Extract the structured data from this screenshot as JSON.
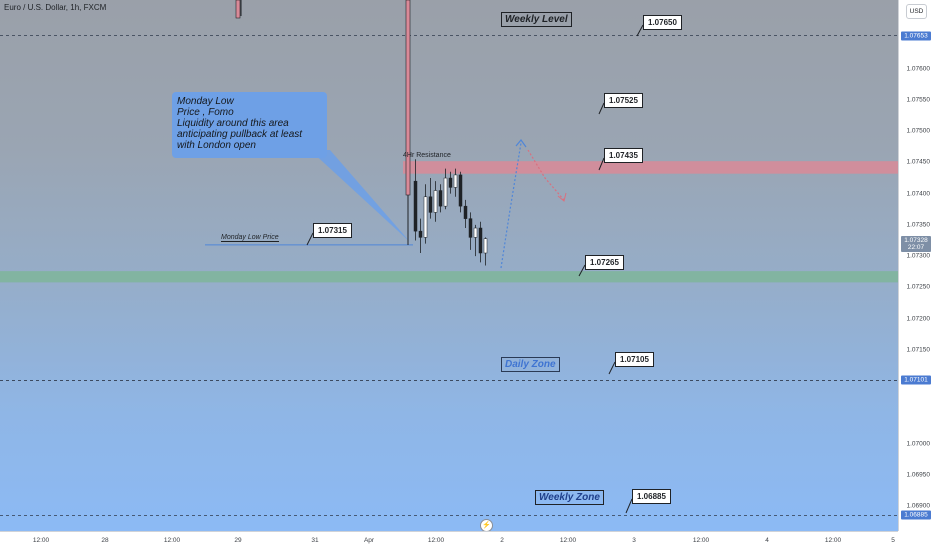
{
  "title": "Euro / U.S. Dollar, 1h, FXCM",
  "currency_button": "USD",
  "chart_data": {
    "type": "candlestick",
    "ylim": [
      1.0686,
      1.0771
    ],
    "price_ticks": [
      "1.07600",
      "1.07550",
      "1.07500",
      "1.07450",
      "1.07400",
      "1.07350",
      "1.07300",
      "1.07250",
      "1.07200",
      "1.07150",
      "1.07000",
      "1.06950",
      "1.06900"
    ],
    "price_tags": [
      {
        "value": "1.07653",
        "color": "#4b7bd1"
      },
      {
        "value": "1.07101",
        "color": "#4b7bd1"
      },
      {
        "value": "1.06885",
        "color": "#4b7bd1"
      },
      {
        "value": "1.07328",
        "sub": "22:07",
        "color": "#7e8fa6"
      }
    ],
    "time_ticks": [
      "12:00",
      "28",
      "12:00",
      "29",
      "31",
      "Apr",
      "12:00",
      "2",
      "12:00",
      "3",
      "12:00",
      "4",
      "12:00",
      "5"
    ],
    "horizontal_lines": [
      {
        "price": 1.07653,
        "style": "dashed"
      },
      {
        "price": 1.07101,
        "style": "dashed"
      },
      {
        "price": 1.06885,
        "style": "dashed"
      }
    ],
    "zones": [
      {
        "name": "4Hr Resistance",
        "from": 1.07432,
        "to": 1.07452,
        "color": "#d98a98"
      },
      {
        "name": "Daily Zone",
        "from": 1.07258,
        "to": 1.07276,
        "color": "#7fb59a"
      }
    ],
    "candles": [
      {
        "o": 1.0742,
        "h": 1.07455,
        "l": 1.07325,
        "c": 1.0734
      },
      {
        "o": 1.0734,
        "h": 1.0736,
        "l": 1.07305,
        "c": 1.0733
      },
      {
        "o": 1.0733,
        "h": 1.07415,
        "l": 1.0732,
        "c": 1.07395
      },
      {
        "o": 1.07395,
        "h": 1.07425,
        "l": 1.0736,
        "c": 1.0737
      },
      {
        "o": 1.0737,
        "h": 1.0742,
        "l": 1.07355,
        "c": 1.07405
      },
      {
        "o": 1.07405,
        "h": 1.07415,
        "l": 1.0737,
        "c": 1.0738
      },
      {
        "o": 1.0738,
        "h": 1.0744,
        "l": 1.07375,
        "c": 1.07425
      },
      {
        "o": 1.07425,
        "h": 1.07435,
        "l": 1.074,
        "c": 1.0741
      },
      {
        "o": 1.0741,
        "h": 1.0744,
        "l": 1.07395,
        "c": 1.0743
      },
      {
        "o": 1.0743,
        "h": 1.07435,
        "l": 1.0737,
        "c": 1.0738
      },
      {
        "o": 1.0738,
        "h": 1.0739,
        "l": 1.07345,
        "c": 1.0736
      },
      {
        "o": 1.0736,
        "h": 1.0737,
        "l": 1.0731,
        "c": 1.0733
      },
      {
        "o": 1.0733,
        "h": 1.0735,
        "l": 1.073,
        "c": 1.07345
      },
      {
        "o": 1.07345,
        "h": 1.07355,
        "l": 1.0729,
        "c": 1.07305
      },
      {
        "o": 1.07305,
        "h": 1.0733,
        "l": 1.07285,
        "c": 1.07328
      }
    ]
  },
  "annotations": {
    "weekly_level": "Weekly Level",
    "daily_zone": "Daily Zone",
    "weekly_zone": "Weekly Zone",
    "resistance_label": "4Hr Resistance",
    "monday_low_label": "Monday Low Price",
    "note_lines": [
      "Monday Low",
      "Price , Fomo",
      "Liquidity around this area",
      "anticipating pullback at least",
      "with London open"
    ],
    "callouts": [
      "1.07650",
      "1.07525",
      "1.07435",
      "1.07315",
      "1.07265",
      "1.07105",
      "1.06885"
    ]
  }
}
